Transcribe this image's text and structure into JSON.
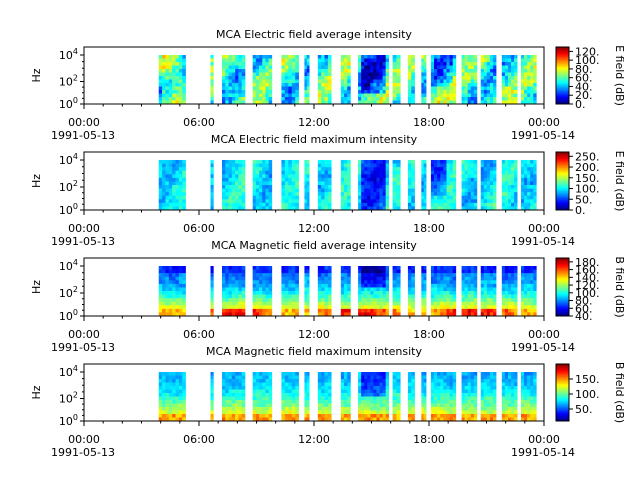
{
  "chart_data": [
    {
      "type": "heatmap",
      "title": "MCA  Electric field average intensity",
      "ylabel": "Hz",
      "colorbar_label": "E field (dB)",
      "colorbar_ticks": [
        "0.",
        "20.",
        "40.",
        "60.",
        "80.",
        "100.",
        "120."
      ],
      "colorbar_range": [
        0,
        130
      ],
      "y_ticks": [
        "10^0",
        "10^2",
        "10^4"
      ],
      "profile": "e_avg"
    },
    {
      "type": "heatmap",
      "title": "MCA  Electric field maximum intensity",
      "ylabel": "Hz",
      "colorbar_label": "E field (dB)",
      "colorbar_ticks": [
        "0.",
        "50.",
        "100.",
        "150.",
        "200.",
        "250."
      ],
      "colorbar_range": [
        0,
        270
      ],
      "y_ticks": [
        "10^0",
        "10^2",
        "10^4"
      ],
      "profile": "e_max"
    },
    {
      "type": "heatmap",
      "title": "MCA  Magnetic field average intensity",
      "ylabel": "Hz",
      "colorbar_label": "B field (dB)",
      "colorbar_ticks": [
        "40.",
        "60.",
        "80.",
        "100.",
        "120.",
        "140.",
        "160.",
        "180."
      ],
      "colorbar_range": [
        40,
        190
      ],
      "y_ticks": [
        "10^0",
        "10^2",
        "10^4"
      ],
      "profile": "b_avg"
    },
    {
      "type": "heatmap",
      "title": "MCA  Magnetic field maximum intensity",
      "ylabel": "Hz",
      "colorbar_label": "B field (dB)",
      "colorbar_ticks": [
        "50.",
        "100.",
        "150."
      ],
      "colorbar_range": [
        10,
        200
      ],
      "y_ticks": [
        "10^0",
        "10^2",
        "10^4"
      ],
      "profile": "b_max"
    }
  ],
  "x_axis": {
    "start": "1991-05-13 00:00",
    "end": "1991-05-14 00:00",
    "tick_labels": [
      "00:00",
      "06:00",
      "12:00",
      "18:00",
      "00:00"
    ],
    "date_labels": [
      "1991-05-13",
      "1991-05-14"
    ]
  },
  "data_intervals_hours": [
    [
      3.9,
      5.3
    ],
    [
      6.6,
      6.75
    ],
    [
      7.2,
      8.4
    ],
    [
      8.8,
      9.8
    ],
    [
      10.3,
      11.2
    ],
    [
      11.5,
      11.75
    ],
    [
      12.2,
      12.9
    ],
    [
      13.4,
      13.9
    ],
    [
      14.3,
      15.9
    ],
    [
      16.1,
      16.5
    ],
    [
      16.9,
      17.25
    ],
    [
      17.6,
      17.85
    ],
    [
      18.1,
      19.4
    ],
    [
      19.7,
      20.5
    ],
    [
      20.7,
      21.5
    ],
    [
      21.8,
      22.6
    ],
    [
      22.8,
      23.6
    ]
  ]
}
